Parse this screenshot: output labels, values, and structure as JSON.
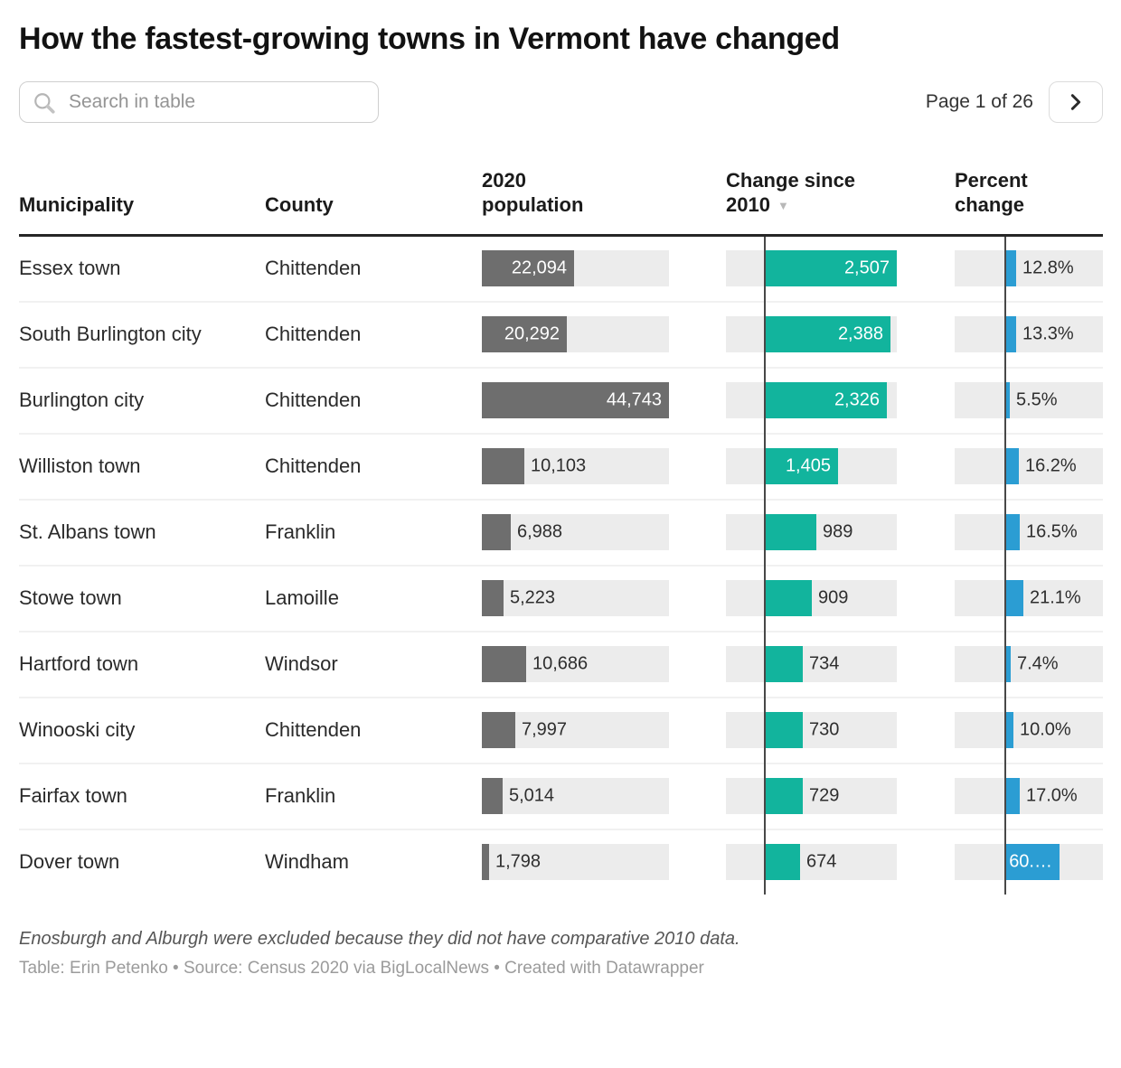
{
  "title": "How the fastest-growing towns in Vermont have changed",
  "search": {
    "placeholder": "Search in table",
    "icon": "search-icon"
  },
  "pagination": {
    "label": "Page 1 of 26",
    "next_icon": "chevron-right"
  },
  "footnote": "Enosburgh and Alburgh were excluded because they did not have comparative 2010 data.",
  "attribution": "Table: Erin Petenko • Source: Census 2020 via BigLocalNews • Created with Datawrapper",
  "colors": {
    "population_bar": "#6e6e6e",
    "change_bar": "#12b49d",
    "percent_bar": "#2b9dd3",
    "bar_track": "#ececec",
    "axis_line": "#484848"
  },
  "chart_data": {
    "type": "table",
    "title": "How the fastest-growing towns in Vermont have changed",
    "columns": [
      "Municipality",
      "County",
      "2020 population",
      "Change since 2010",
      "Percent change"
    ],
    "sorted_by": "Change since 2010",
    "sort_order": "descending",
    "sort_indicator": "▼",
    "bar_axes": {
      "population_bar_max": 44743,
      "change_bar_max": 2507,
      "percent_bar_shown_max": 60.5
    },
    "rows": [
      {
        "municipality": "Essex town",
        "county": "Chittenden",
        "population": 22094,
        "population_label": "22,094",
        "change": 2507,
        "change_label": "2,507",
        "percent": 12.8,
        "percent_label": "12.8%"
      },
      {
        "municipality": "South Burlington city",
        "county": "Chittenden",
        "population": 20292,
        "population_label": "20,292",
        "change": 2388,
        "change_label": "2,388",
        "percent": 13.3,
        "percent_label": "13.3%"
      },
      {
        "municipality": "Burlington city",
        "county": "Chittenden",
        "population": 44743,
        "population_label": "44,743",
        "change": 2326,
        "change_label": "2,326",
        "percent": 5.5,
        "percent_label": "5.5%"
      },
      {
        "municipality": "Williston town",
        "county": "Chittenden",
        "population": 10103,
        "population_label": "10,103",
        "change": 1405,
        "change_label": "1,405",
        "percent": 16.2,
        "percent_label": "16.2%"
      },
      {
        "municipality": "St. Albans town",
        "county": "Franklin",
        "population": 6988,
        "population_label": "6,988",
        "change": 989,
        "change_label": "989",
        "percent": 16.5,
        "percent_label": "16.5%"
      },
      {
        "municipality": "Stowe town",
        "county": "Lamoille",
        "population": 5223,
        "population_label": "5,223",
        "change": 909,
        "change_label": "909",
        "percent": 21.1,
        "percent_label": "21.1%"
      },
      {
        "municipality": "Hartford town",
        "county": "Windsor",
        "population": 10686,
        "population_label": "10,686",
        "change": 734,
        "change_label": "734",
        "percent": 7.4,
        "percent_label": "7.4%"
      },
      {
        "municipality": "Winooski city",
        "county": "Chittenden",
        "population": 7997,
        "population_label": "7,997",
        "change": 730,
        "change_label": "730",
        "percent": 10.0,
        "percent_label": "10.0%"
      },
      {
        "municipality": "Fairfax town",
        "county": "Franklin",
        "population": 5014,
        "population_label": "5,014",
        "change": 729,
        "change_label": "729",
        "percent": 17.0,
        "percent_label": "17.0%"
      },
      {
        "municipality": "Dover town",
        "county": "Windham",
        "population": 1798,
        "population_label": "1,798",
        "change": 674,
        "change_label": "674",
        "percent": 60.5,
        "percent_label": "60.…"
      }
    ]
  }
}
